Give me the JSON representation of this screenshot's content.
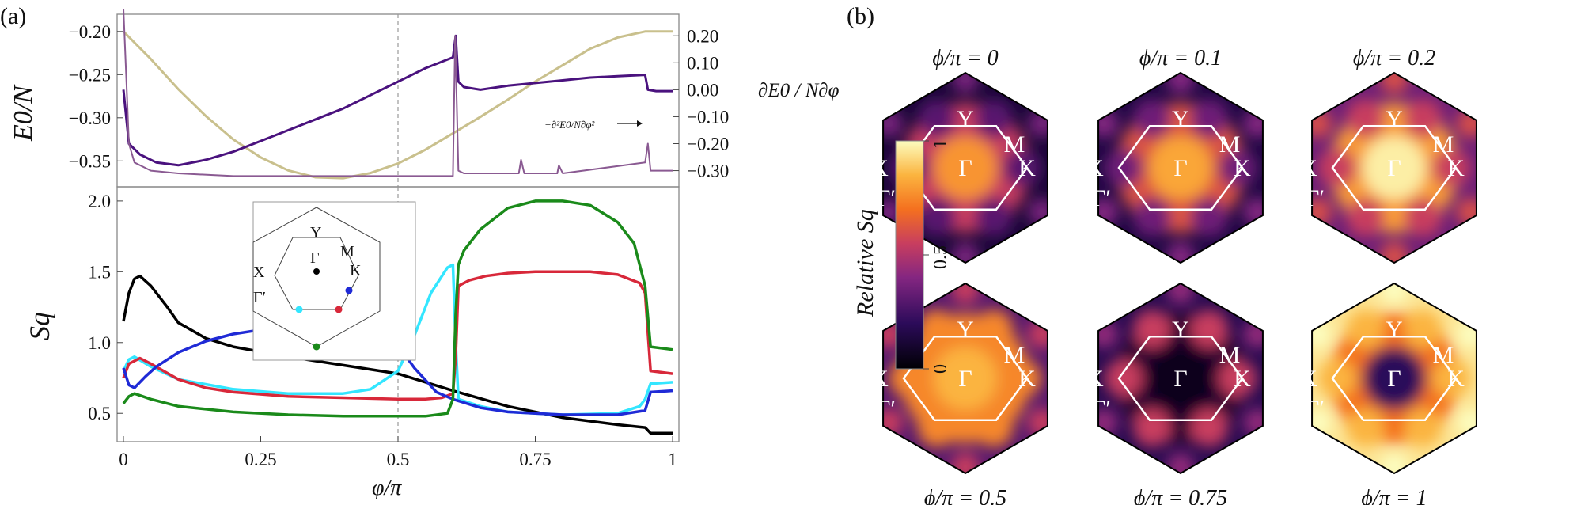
{
  "panel_a_label": "(a)",
  "panel_b_label": "(b)",
  "colors": {
    "black": "#000000",
    "cyan": "#33e6ff",
    "red": "#d8283a",
    "blue": "#1f2ad6",
    "green": "#1a8a1a",
    "purple_dark": "#4a127e",
    "purple_light": "#8a5a92",
    "khaki": "#c9c08d",
    "white": "#ffffff"
  },
  "chart_data": [
    {
      "type": "line",
      "title": "",
      "xlabel": "",
      "ylabel_left": "E0/N",
      "ylabel_right": "∂E0 / N∂φ",
      "annotation": "−∂²E0/N∂φ²",
      "xlim": [
        0,
        1
      ],
      "ylim_left": [
        -0.38,
        -0.18
      ],
      "ylim_right": [
        -0.36,
        0.28
      ],
      "left_ticks": [
        "−0.20",
        "−0.25",
        "−0.30",
        "−0.35"
      ],
      "left_tick_values": [
        -0.2,
        -0.25,
        -0.3,
        -0.35
      ],
      "right_ticks": [
        "0.20",
        "0.10",
        "0.00",
        "−0.10",
        "−0.20",
        "−0.30"
      ],
      "right_tick_values": [
        0.2,
        0.1,
        0.0,
        -0.1,
        -0.2,
        -0.3
      ],
      "vline_x": 0.5,
      "series": [
        {
          "name": "E0/N",
          "axis": "left",
          "color": "#c9c08d",
          "x": [
            0.0,
            0.05,
            0.1,
            0.15,
            0.2,
            0.25,
            0.3,
            0.35,
            0.4,
            0.45,
            0.5,
            0.55,
            0.6,
            0.65,
            0.7,
            0.75,
            0.8,
            0.85,
            0.9,
            0.95,
            1.0
          ],
          "y": [
            -0.2,
            -0.232,
            -0.267,
            -0.298,
            -0.325,
            -0.346,
            -0.361,
            -0.369,
            -0.37,
            -0.364,
            -0.353,
            -0.337,
            -0.318,
            -0.299,
            -0.279,
            -0.258,
            -0.239,
            -0.22,
            -0.207,
            -0.2,
            -0.2
          ]
        },
        {
          "name": "∂E0/N∂φ",
          "axis": "right",
          "color": "#4a127e",
          "x": [
            0.0,
            0.01,
            0.03,
            0.06,
            0.1,
            0.15,
            0.2,
            0.25,
            0.3,
            0.35,
            0.4,
            0.45,
            0.5,
            0.55,
            0.6,
            0.605,
            0.61,
            0.62,
            0.65,
            0.7,
            0.75,
            0.8,
            0.85,
            0.9,
            0.95,
            0.955,
            0.97,
            1.0
          ],
          "y": [
            0.0,
            -0.2,
            -0.24,
            -0.27,
            -0.28,
            -0.26,
            -0.23,
            -0.19,
            -0.15,
            -0.11,
            -0.07,
            -0.02,
            0.03,
            0.08,
            0.12,
            0.2,
            0.03,
            0.01,
            0.0,
            0.015,
            0.025,
            0.035,
            0.045,
            0.05,
            0.055,
            0.0,
            -0.005,
            -0.005
          ]
        },
        {
          "name": "−∂²E0/N∂φ²",
          "axis": "right",
          "color": "#8a5a92",
          "x": [
            0.0,
            0.005,
            0.01,
            0.02,
            0.05,
            0.1,
            0.2,
            0.3,
            0.4,
            0.5,
            0.6,
            0.604,
            0.61,
            0.62,
            0.7,
            0.72,
            0.724,
            0.73,
            0.79,
            0.793,
            0.8,
            0.95,
            0.955,
            0.96,
            1.0
          ],
          "y": [
            0.3,
            0.05,
            -0.2,
            -0.27,
            -0.3,
            -0.31,
            -0.32,
            -0.32,
            -0.32,
            -0.32,
            -0.32,
            0.2,
            -0.3,
            -0.31,
            -0.31,
            -0.31,
            -0.26,
            -0.31,
            -0.31,
            -0.28,
            -0.31,
            -0.27,
            -0.2,
            -0.3,
            -0.3
          ]
        }
      ]
    },
    {
      "type": "line",
      "title": "",
      "xlabel": "φ/π",
      "ylabel": "Sq",
      "xlim": [
        0,
        1
      ],
      "ylim": [
        0.3,
        2.1
      ],
      "x_ticks": [
        "0",
        "0.25",
        "0.5",
        "0.75",
        "1"
      ],
      "x_tick_values": [
        0,
        0.25,
        0.5,
        0.75,
        1
      ],
      "y_ticks": [
        "2.0",
        "1.5",
        "1.0",
        "0.5"
      ],
      "y_tick_values": [
        2.0,
        1.5,
        1.0,
        0.5
      ],
      "vline_x": 0.5,
      "series": [
        {
          "name": "Γ",
          "color": "#000000",
          "x": [
            0.0,
            0.01,
            0.02,
            0.03,
            0.05,
            0.08,
            0.1,
            0.15,
            0.2,
            0.3,
            0.4,
            0.5,
            0.6,
            0.7,
            0.8,
            0.9,
            0.95,
            0.96,
            1.0
          ],
          "y": [
            1.15,
            1.35,
            1.45,
            1.47,
            1.4,
            1.25,
            1.14,
            1.03,
            0.97,
            0.9,
            0.84,
            0.78,
            0.66,
            0.55,
            0.47,
            0.42,
            0.4,
            0.36,
            0.36
          ]
        },
        {
          "name": "Γ′",
          "color": "#33e6ff",
          "x": [
            0.0,
            0.01,
            0.02,
            0.05,
            0.1,
            0.2,
            0.3,
            0.4,
            0.45,
            0.5,
            0.53,
            0.56,
            0.59,
            0.6,
            0.605,
            0.61,
            0.65,
            0.7,
            0.75,
            0.8,
            0.9,
            0.94,
            0.95,
            0.96,
            1.0
          ],
          "y": [
            0.8,
            0.88,
            0.9,
            0.83,
            0.74,
            0.67,
            0.64,
            0.64,
            0.67,
            0.8,
            1.05,
            1.35,
            1.53,
            1.55,
            1.0,
            0.6,
            0.55,
            0.51,
            0.5,
            0.49,
            0.5,
            0.55,
            0.6,
            0.71,
            0.72
          ]
        },
        {
          "name": "K′",
          "color": "#d8283a",
          "x": [
            0.0,
            0.01,
            0.03,
            0.05,
            0.1,
            0.15,
            0.2,
            0.3,
            0.4,
            0.5,
            0.55,
            0.58,
            0.6,
            0.605,
            0.61,
            0.63,
            0.66,
            0.7,
            0.75,
            0.8,
            0.85,
            0.9,
            0.94,
            0.95,
            0.96,
            1.0
          ],
          "y": [
            0.75,
            0.85,
            0.89,
            0.85,
            0.74,
            0.68,
            0.65,
            0.62,
            0.61,
            0.6,
            0.6,
            0.61,
            0.64,
            0.9,
            1.4,
            1.44,
            1.47,
            1.49,
            1.5,
            1.5,
            1.5,
            1.48,
            1.42,
            1.35,
            0.8,
            0.78
          ]
        },
        {
          "name": "K",
          "color": "#1f2ad6",
          "x": [
            0.0,
            0.01,
            0.02,
            0.04,
            0.06,
            0.1,
            0.15,
            0.2,
            0.25,
            0.3,
            0.35,
            0.4,
            0.45,
            0.48,
            0.5,
            0.53,
            0.57,
            0.6,
            0.65,
            0.7,
            0.75,
            0.8,
            0.85,
            0.9,
            0.95,
            0.96,
            1.0
          ],
          "y": [
            0.82,
            0.7,
            0.68,
            0.76,
            0.83,
            0.93,
            1.01,
            1.06,
            1.09,
            1.11,
            1.12,
            1.12,
            1.1,
            1.06,
            0.98,
            0.82,
            0.65,
            0.6,
            0.54,
            0.51,
            0.5,
            0.49,
            0.49,
            0.49,
            0.52,
            0.65,
            0.66
          ]
        },
        {
          "name": "Y",
          "color": "#1a8a1a",
          "x": [
            0.0,
            0.01,
            0.02,
            0.05,
            0.1,
            0.2,
            0.3,
            0.4,
            0.5,
            0.55,
            0.59,
            0.6,
            0.605,
            0.61,
            0.62,
            0.65,
            0.7,
            0.75,
            0.8,
            0.85,
            0.9,
            0.93,
            0.95,
            0.96,
            1.0
          ],
          "y": [
            0.57,
            0.62,
            0.64,
            0.6,
            0.55,
            0.51,
            0.49,
            0.48,
            0.48,
            0.48,
            0.5,
            0.6,
            1.2,
            1.55,
            1.65,
            1.8,
            1.95,
            2.0,
            2.0,
            1.97,
            1.85,
            1.7,
            1.4,
            0.97,
            0.95
          ]
        }
      ]
    }
  ],
  "inset": {
    "labels": {
      "Y": "Y",
      "M": "M",
      "X": "X",
      "K": "K",
      "Gamma": "Γ",
      "GammaPrime": "Γ′"
    }
  },
  "panel_b": {
    "colorbar": {
      "title": "Relative Sq",
      "max": "1",
      "mid": "0.5",
      "min": "0"
    },
    "point_labels": {
      "Y": "Y",
      "M": "M",
      "X": "X",
      "K": "K",
      "Gamma": "Γ",
      "GammaPrime": "Γ′"
    },
    "maps": [
      {
        "title": "ϕ/π = 0",
        "phi": 0,
        "center": 0.78,
        "ring": 0.55,
        "edge": 0.12,
        "kpts": 0.3
      },
      {
        "title": "ϕ/π = 0.1",
        "phi": 0.1,
        "center": 0.82,
        "ring": 0.62,
        "edge": 0.15,
        "kpts": 0.35
      },
      {
        "title": "ϕ/π = 0.2",
        "phi": 0.2,
        "center": 0.97,
        "ring": 0.8,
        "edge": 0.35,
        "kpts": 0.55
      },
      {
        "title": "ϕ/π = 0.5",
        "phi": 0.5,
        "center": 0.85,
        "ring": 0.75,
        "edge": 0.3,
        "kpts": 0.75
      },
      {
        "title": "ϕ/π = 0.75",
        "phi": 0.75,
        "center": 0.06,
        "ring": 0.1,
        "edge": 0.18,
        "kpts": 0.55
      },
      {
        "title": "ϕ/π = 1",
        "phi": 1,
        "center": 0.2,
        "ring": 0.7,
        "edge": 0.95,
        "kpts": 0.85
      }
    ]
  }
}
